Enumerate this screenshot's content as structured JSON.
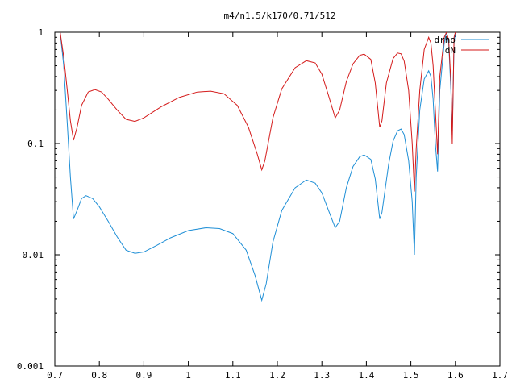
{
  "chart_data": {
    "type": "line",
    "title": "m4/n1.5/k170/0.71/512",
    "xlabel": "",
    "ylabel": "",
    "xlim": [
      0.7,
      1.7
    ],
    "ylim": [
      0.001,
      1
    ],
    "y_scale": "log",
    "grid": false,
    "legend_position": "top-right",
    "x_ticks": [
      {
        "value": 0.7,
        "label": "0.7"
      },
      {
        "value": 0.8,
        "label": "0.8"
      },
      {
        "value": 0.9,
        "label": "0.9"
      },
      {
        "value": 1.0,
        "label": "1"
      },
      {
        "value": 1.1,
        "label": "1.1"
      },
      {
        "value": 1.2,
        "label": "1.2"
      },
      {
        "value": 1.3,
        "label": "1.3"
      },
      {
        "value": 1.4,
        "label": "1.4"
      },
      {
        "value": 1.5,
        "label": "1.5"
      },
      {
        "value": 1.6,
        "label": "1.6"
      },
      {
        "value": 1.7,
        "label": "1.7"
      }
    ],
    "y_ticks": [
      {
        "value": 0.001,
        "label": "0.001"
      },
      {
        "value": 0.01,
        "label": "0.01"
      },
      {
        "value": 0.1,
        "label": "0.1"
      },
      {
        "value": 1,
        "label": "1"
      }
    ],
    "series": [
      {
        "name": "drho",
        "color": "#1f8fd6",
        "points": [
          [
            0.712,
            1.0
          ],
          [
            0.72,
            0.5
          ],
          [
            0.728,
            0.15
          ],
          [
            0.735,
            0.05
          ],
          [
            0.742,
            0.021
          ],
          [
            0.75,
            0.025
          ],
          [
            0.76,
            0.032
          ],
          [
            0.77,
            0.034
          ],
          [
            0.785,
            0.032
          ],
          [
            0.8,
            0.027
          ],
          [
            0.82,
            0.02
          ],
          [
            0.84,
            0.0145
          ],
          [
            0.86,
            0.011
          ],
          [
            0.88,
            0.0103
          ],
          [
            0.9,
            0.0106
          ],
          [
            0.93,
            0.0122
          ],
          [
            0.96,
            0.0142
          ],
          [
            1.0,
            0.0165
          ],
          [
            1.04,
            0.0175
          ],
          [
            1.07,
            0.0172
          ],
          [
            1.1,
            0.0155
          ],
          [
            1.13,
            0.011
          ],
          [
            1.15,
            0.0065
          ],
          [
            1.165,
            0.0039
          ],
          [
            1.175,
            0.0055
          ],
          [
            1.19,
            0.013
          ],
          [
            1.21,
            0.025
          ],
          [
            1.24,
            0.04
          ],
          [
            1.265,
            0.047
          ],
          [
            1.285,
            0.044
          ],
          [
            1.3,
            0.036
          ],
          [
            1.315,
            0.025
          ],
          [
            1.33,
            0.0175
          ],
          [
            1.34,
            0.02
          ],
          [
            1.355,
            0.04
          ],
          [
            1.37,
            0.062
          ],
          [
            1.385,
            0.076
          ],
          [
            1.395,
            0.079
          ],
          [
            1.41,
            0.072
          ],
          [
            1.42,
            0.048
          ],
          [
            1.43,
            0.021
          ],
          [
            1.435,
            0.024
          ],
          [
            1.45,
            0.065
          ],
          [
            1.46,
            0.105
          ],
          [
            1.47,
            0.13
          ],
          [
            1.478,
            0.135
          ],
          [
            1.485,
            0.12
          ],
          [
            1.495,
            0.07
          ],
          [
            1.503,
            0.03
          ],
          [
            1.508,
            0.01
          ],
          [
            1.512,
            0.05
          ],
          [
            1.52,
            0.2
          ],
          [
            1.53,
            0.38
          ],
          [
            1.54,
            0.45
          ],
          [
            1.545,
            0.4
          ],
          [
            1.55,
            0.25
          ],
          [
            1.555,
            0.1
          ],
          [
            1.56,
            0.056
          ],
          [
            1.565,
            0.3
          ],
          [
            1.575,
            0.8
          ],
          [
            1.58,
            1.0
          ],
          [
            1.585,
            0.8
          ],
          [
            1.59,
            0.3
          ],
          [
            1.593,
            0.12
          ],
          [
            1.597,
            0.8
          ],
          [
            1.6,
            1.0
          ]
        ]
      },
      {
        "name": "dN",
        "color": "#d41a1a",
        "points": [
          [
            0.712,
            1.0
          ],
          [
            0.72,
            0.6
          ],
          [
            0.728,
            0.3
          ],
          [
            0.735,
            0.16
          ],
          [
            0.742,
            0.107
          ],
          [
            0.75,
            0.14
          ],
          [
            0.76,
            0.22
          ],
          [
            0.775,
            0.29
          ],
          [
            0.79,
            0.305
          ],
          [
            0.805,
            0.29
          ],
          [
            0.82,
            0.25
          ],
          [
            0.84,
            0.2
          ],
          [
            0.86,
            0.165
          ],
          [
            0.88,
            0.158
          ],
          [
            0.9,
            0.17
          ],
          [
            0.94,
            0.215
          ],
          [
            0.98,
            0.26
          ],
          [
            1.02,
            0.29
          ],
          [
            1.05,
            0.295
          ],
          [
            1.08,
            0.28
          ],
          [
            1.11,
            0.22
          ],
          [
            1.135,
            0.14
          ],
          [
            1.155,
            0.08
          ],
          [
            1.165,
            0.058
          ],
          [
            1.172,
            0.07
          ],
          [
            1.19,
            0.17
          ],
          [
            1.21,
            0.31
          ],
          [
            1.24,
            0.48
          ],
          [
            1.265,
            0.555
          ],
          [
            1.285,
            0.53
          ],
          [
            1.3,
            0.42
          ],
          [
            1.315,
            0.27
          ],
          [
            1.33,
            0.17
          ],
          [
            1.34,
            0.2
          ],
          [
            1.355,
            0.36
          ],
          [
            1.37,
            0.52
          ],
          [
            1.385,
            0.62
          ],
          [
            1.395,
            0.635
          ],
          [
            1.41,
            0.57
          ],
          [
            1.42,
            0.35
          ],
          [
            1.43,
            0.14
          ],
          [
            1.435,
            0.16
          ],
          [
            1.445,
            0.35
          ],
          [
            1.46,
            0.58
          ],
          [
            1.47,
            0.65
          ],
          [
            1.478,
            0.64
          ],
          [
            1.485,
            0.55
          ],
          [
            1.495,
            0.3
          ],
          [
            1.503,
            0.1
          ],
          [
            1.508,
            0.037
          ],
          [
            1.512,
            0.09
          ],
          [
            1.52,
            0.3
          ],
          [
            1.53,
            0.7
          ],
          [
            1.54,
            0.9
          ],
          [
            1.545,
            0.8
          ],
          [
            1.55,
            0.5
          ],
          [
            1.555,
            0.2
          ],
          [
            1.56,
            0.08
          ],
          [
            1.565,
            0.4
          ],
          [
            1.575,
            0.9
          ],
          [
            1.58,
            1.0
          ],
          [
            1.585,
            0.85
          ],
          [
            1.59,
            0.35
          ],
          [
            1.593,
            0.1
          ],
          [
            1.597,
            0.9
          ],
          [
            1.6,
            1.0
          ]
        ]
      }
    ]
  }
}
